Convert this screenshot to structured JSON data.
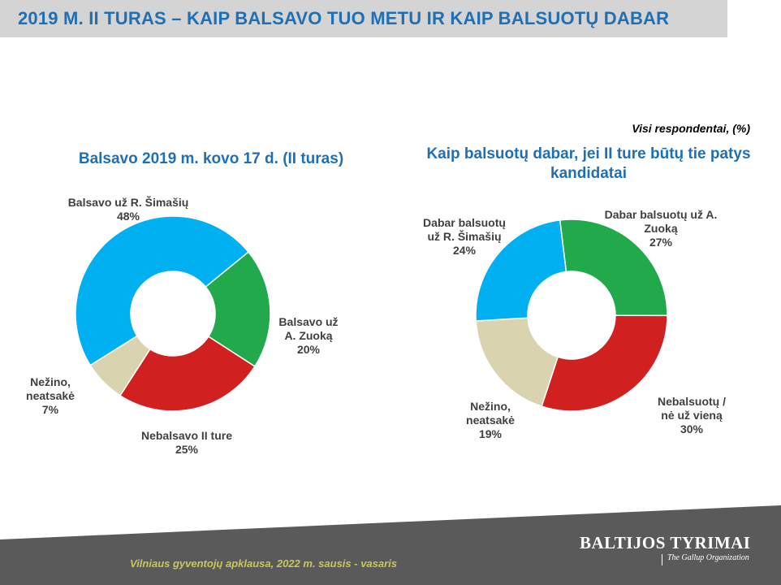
{
  "header": {
    "title": "2019 M. II TURAS – KAIP BALSAVO TUO METU IR KAIP BALSUOTŲ DABAR"
  },
  "note": "Visi respondentai, (%)",
  "footer": {
    "survey": "Vilniaus gyventojų apklausa, 2022 m. sausis - vasaris",
    "brand": "BALTIJOS TYRIMAI",
    "brand_sub": "The Gallup Organization"
  },
  "colors": {
    "title": "#1f6fb5",
    "blue": "#00b0f0",
    "green": "#22a94b",
    "red": "#d0201f",
    "beige": "#d9d3b0",
    "footer_bg": "#5a5a5a"
  },
  "chart_data": [
    {
      "type": "pie",
      "title": "Balsavo 2019 m. kovo 17 d. (II turas)",
      "slices": [
        {
          "label": "Balsavo už R. Šimašių",
          "value": 48,
          "display": "48%",
          "color": "#00b0f0"
        },
        {
          "label": "Balsavo už A. Zuoką",
          "value": 20,
          "display": "20%",
          "color": "#22a94b"
        },
        {
          "label": "Nebalsavo II ture",
          "value": 25,
          "display": "25%",
          "color": "#d0201f"
        },
        {
          "label": "Nežino, neatsakė",
          "value": 7,
          "display": "7%",
          "color": "#d9d3b0"
        }
      ]
    },
    {
      "type": "pie",
      "title": "Kaip balsuotų dabar, jei II ture būtų tie patys kandidatai",
      "slices": [
        {
          "label": "Dabar balsuotų už A. Zuoką",
          "value": 27,
          "display": "27%",
          "color": "#22a94b"
        },
        {
          "label": "Nebalsuotų / nė už vieną",
          "value": 30,
          "display": "30%",
          "color": "#d0201f"
        },
        {
          "label": "Nežino, neatsakė",
          "value": 19,
          "display": "19%",
          "color": "#d9d3b0"
        },
        {
          "label": "Dabar balsuotų už R. Šimašių",
          "value": 24,
          "display": "24%",
          "color": "#00b0f0"
        }
      ]
    }
  ]
}
